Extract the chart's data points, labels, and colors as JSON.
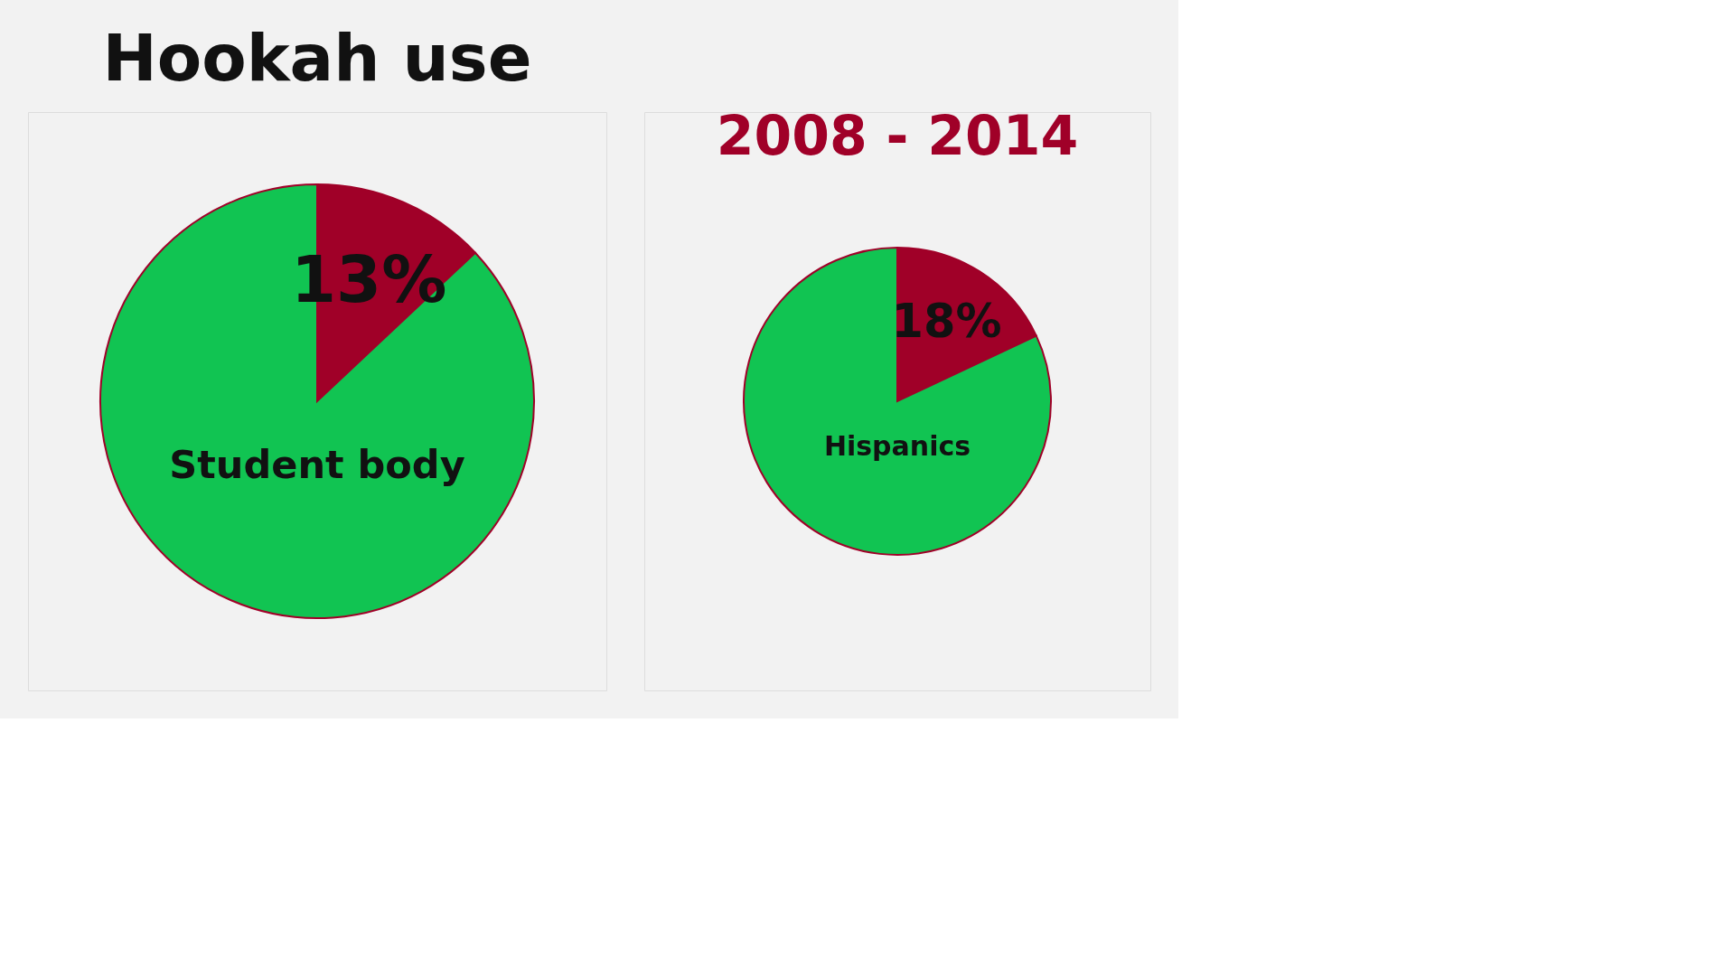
{
  "chart_data": [
    {
      "type": "pie",
      "title": "Hookah use",
      "categories": [
        null,
        null
      ],
      "values": [
        13,
        87
      ],
      "colors": [
        "#a00028",
        "#11c452"
      ],
      "value_labels": [
        "13%",
        null
      ],
      "annotations": [
        "Student body"
      ]
    },
    {
      "type": "pie",
      "title": "2008 - 2014",
      "categories": [
        null,
        null
      ],
      "values": [
        18,
        82
      ],
      "colors": [
        "#a00028",
        "#11c452"
      ],
      "value_labels": [
        "18%",
        null
      ],
      "annotations": [
        "Hispanics"
      ]
    }
  ]
}
